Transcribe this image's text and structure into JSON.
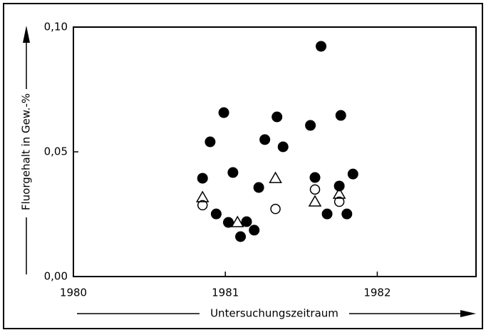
{
  "chart_data": {
    "type": "scatter",
    "xlabel": "Untersuchungszeitraum",
    "ylabel": "Fluorgehalt in Gew.-%",
    "xlim": [
      1980,
      1982.65
    ],
    "xticks": [
      1980,
      1981,
      1982
    ],
    "ylim": [
      0,
      0.1
    ],
    "yticks": [
      {
        "value": 0,
        "label": "0,00"
      },
      {
        "value": 0.05,
        "label": "0,05"
      },
      {
        "value": 0.1,
        "label": "0,10"
      }
    ],
    "series": [
      {
        "marker": "filled-circle",
        "color": "#000000",
        "x": [
          1980.85,
          1980.9,
          1980.99,
          1980.94,
          1981.02,
          1981.05,
          1981.1,
          1981.14,
          1981.19,
          1981.22,
          1981.26,
          1981.34,
          1981.38,
          1981.56,
          1981.59,
          1981.63,
          1981.67,
          1981.76,
          1981.75,
          1981.8,
          1981.84
        ],
        "values": [
          0.0394,
          0.054,
          0.0657,
          0.0251,
          0.0217,
          0.0417,
          0.016,
          0.022,
          0.0186,
          0.0357,
          0.0549,
          0.064,
          0.052,
          0.0606,
          0.0397,
          0.0923,
          0.0251,
          0.0646,
          0.0363,
          0.0251,
          0.0411
        ]
      },
      {
        "marker": "open-circle",
        "color": "#000000",
        "x": [
          1980.85,
          1981.33,
          1981.59,
          1981.75
        ],
        "values": [
          0.0286,
          0.0271,
          0.0349,
          0.03
        ]
      },
      {
        "marker": "open-triangle",
        "color": "#000000",
        "x": [
          1980.85,
          1981.08,
          1981.33,
          1981.59,
          1981.75
        ],
        "values": [
          0.0317,
          0.0217,
          0.0394,
          0.03,
          0.0331
        ]
      }
    ]
  }
}
